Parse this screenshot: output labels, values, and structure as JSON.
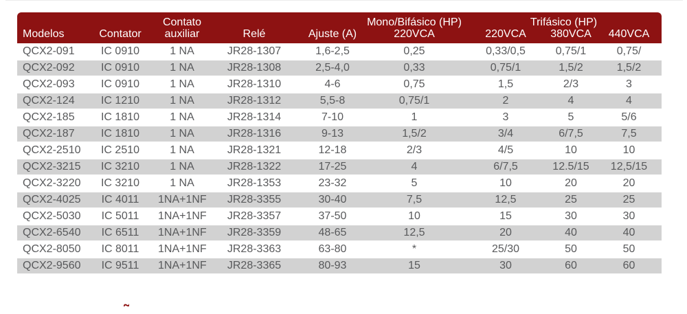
{
  "colors": {
    "header_bg": "#8d1212",
    "header_text": "#ffffff",
    "row_alt_bg": "#d2d2d2",
    "body_text": "#58595b"
  },
  "page": {
    "cutoff_tilde": "˜"
  },
  "table": {
    "headers": {
      "modelos": "Modelos",
      "contator": "Contator",
      "contato_auxiliar_line1": "Contato",
      "contato_auxiliar_line2": "auxiliar",
      "rele": "Relé",
      "ajuste": "Ajuste (A)",
      "mono_bifasico_group": "Mono/Bifásico (HP)",
      "mono_220vca": "220VCA",
      "trifasico_group": "Trifásico (HP)",
      "tri_220vca": "220VCA",
      "tri_380vca": "380VCA",
      "tri_440vca": "440VCA"
    },
    "rows": [
      [
        "QCX2-091",
        "IC 0910",
        "1 NA",
        "JR28-1307",
        "1,6-2,5",
        "0,25",
        "0,33/0,5",
        "0,75/1",
        "0,75/"
      ],
      [
        "QCX2-092",
        "IC 0910",
        "1 NA",
        "JR28-1308",
        "2,5-4,0",
        "0,33",
        "0,75/1",
        "1,5/2",
        "1,5/2"
      ],
      [
        "QCX2-093",
        "IC 0910",
        "1 NA",
        "JR28-1310",
        "4-6",
        "0,75",
        "1,5",
        "2/3",
        "3"
      ],
      [
        "QCX2-124",
        "IC 1210",
        "1 NA",
        "JR28-1312",
        "5,5-8",
        "0,75/1",
        "2",
        "4",
        "4"
      ],
      [
        "QCX2-185",
        "IC 1810",
        "1 NA",
        "JR28-1314",
        "7-10",
        "1",
        "3",
        "5",
        "5/6"
      ],
      [
        "QCX2-187",
        "IC 1810",
        "1 NA",
        "JR28-1316",
        "9-13",
        "1,5/2",
        "3/4",
        "6/7,5",
        "7,5"
      ],
      [
        "QCX2-2510",
        "IC 2510",
        "1 NA",
        "JR28-1321",
        "12-18",
        "2/3",
        "4/5",
        "10",
        "10"
      ],
      [
        "QCX2-3215",
        "IC 3210",
        "1 NA",
        "JR28-1322",
        "17-25",
        "4",
        "6/7,5",
        "12.5/15",
        "12,5/15"
      ],
      [
        "QCX2-3220",
        "IC 3210",
        "1 NA",
        "JR28-1353",
        "23-32",
        "5",
        "10",
        "20",
        "20"
      ],
      [
        "QCX2-4025",
        "IC 4011",
        "1NA+1NF",
        "JR28-3355",
        "30-40",
        "7,5",
        "12,5",
        "25",
        "25"
      ],
      [
        "QCX2-5030",
        "IC 5011",
        "1NA+1NF",
        "JR28-3357",
        "37-50",
        "10",
        "15",
        "30",
        "30"
      ],
      [
        "QCX2-6540",
        "IC 6511",
        "1NA+1NF",
        "JR28-3359",
        "48-65",
        "12,5",
        "20",
        "40",
        "40"
      ],
      [
        "QCX2-8050",
        "IC 8011",
        "1NA+1NF",
        "JR28-3363",
        "63-80",
        "*",
        "25/30",
        "50",
        "50"
      ],
      [
        "QCX2-9560",
        "IC 9511",
        "1NA+1NF",
        "JR28-3365",
        "80-93",
        "15",
        "30",
        "60",
        "60"
      ]
    ]
  }
}
